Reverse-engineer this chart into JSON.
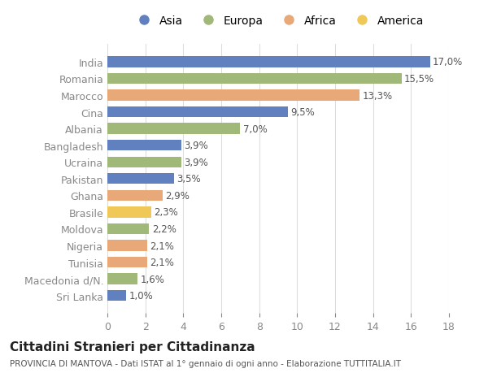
{
  "categories": [
    "India",
    "Romania",
    "Marocco",
    "Cina",
    "Albania",
    "Bangladesh",
    "Ucraina",
    "Pakistan",
    "Ghana",
    "Brasile",
    "Moldova",
    "Nigeria",
    "Tunisia",
    "Macedonia d/N.",
    "Sri Lanka"
  ],
  "values": [
    17.0,
    15.5,
    13.3,
    9.5,
    7.0,
    3.9,
    3.9,
    3.5,
    2.9,
    2.3,
    2.2,
    2.1,
    2.1,
    1.6,
    1.0
  ],
  "labels": [
    "17,0%",
    "15,5%",
    "13,3%",
    "9,5%",
    "7,0%",
    "3,9%",
    "3,9%",
    "3,5%",
    "2,9%",
    "2,3%",
    "2,2%",
    "2,1%",
    "2,1%",
    "1,6%",
    "1,0%"
  ],
  "continents": [
    "Asia",
    "Europa",
    "Africa",
    "Asia",
    "Europa",
    "Asia",
    "Europa",
    "Asia",
    "Africa",
    "America",
    "Europa",
    "Africa",
    "Africa",
    "Europa",
    "Asia"
  ],
  "colors": {
    "Asia": "#6080c0",
    "Europa": "#a0b878",
    "Africa": "#e8a878",
    "America": "#f0c858"
  },
  "legend_order": [
    "Asia",
    "Europa",
    "Africa",
    "America"
  ],
  "legend_colors": [
    "#6080c0",
    "#a0b878",
    "#e8a878",
    "#f0c858"
  ],
  "xlim": [
    0,
    18
  ],
  "xticks": [
    0,
    2,
    4,
    6,
    8,
    10,
    12,
    14,
    16,
    18
  ],
  "title": "Cittadini Stranieri per Cittadinanza",
  "subtitle": "PROVINCIA DI MANTOVA - Dati ISTAT al 1° gennaio di ogni anno - Elaborazione TUTTITALIA.IT",
  "background_color": "#ffffff",
  "bar_height": 0.65,
  "grid_color": "#dddddd"
}
